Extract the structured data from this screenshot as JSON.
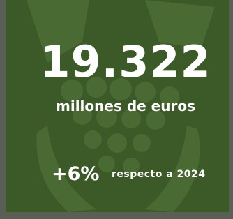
{
  "stat": {
    "value": "19.322",
    "unit": "millones de euros",
    "change": "+6%",
    "comparison": "respecto a 2024"
  }
}
